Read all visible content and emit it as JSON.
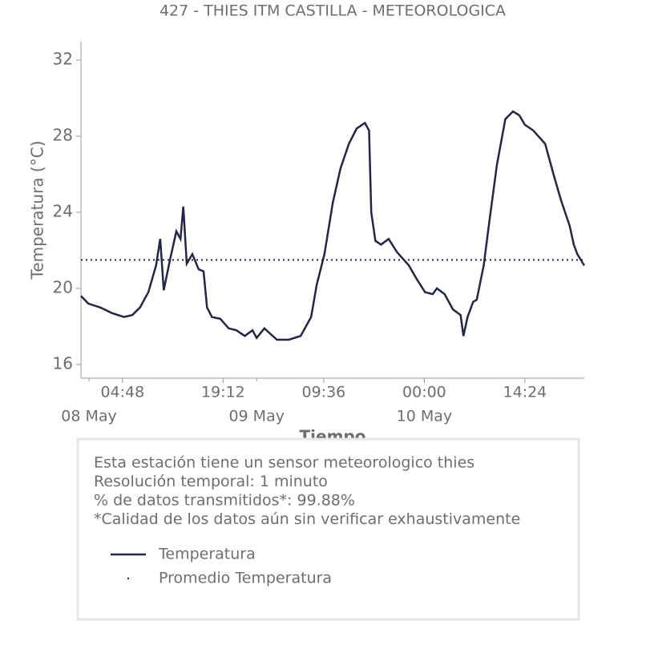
{
  "chart_data": {
    "type": "line",
    "title": "427 - THIES ITM CASTILLA - METEOROLOGICA",
    "xlabel": "Tiempo",
    "ylabel": "Temperatura (°C)",
    "x": [
      -1.15,
      -0.1,
      1.6,
      3.3,
      5.0,
      6.2,
      7.3,
      8.5,
      9.6,
      10.2,
      10.7,
      11.6,
      12.5,
      13.1,
      13.5,
      14.0,
      14.8,
      15.7,
      16.4,
      16.9,
      17.6,
      18.8,
      20.0,
      21.1,
      22.3,
      23.4,
      24.0,
      25.1,
      26.9,
      28.6,
      30.3,
      31.8,
      32.6,
      33.7,
      34.9,
      36.0,
      37.2,
      38.3,
      39.5,
      40.1,
      40.4,
      41.0,
      41.8,
      42.9,
      44.1,
      45.8,
      46.9,
      48.1,
      49.2,
      49.8,
      50.9,
      52.1,
      53.2,
      53.6,
      54.2,
      55.0,
      55.5,
      56.5,
      57.3,
      58.4,
      59.6,
      60.7,
      61.6,
      62.4,
      63.6,
      65.3,
      66.5,
      67.6,
      68.8,
      69.4,
      69.9,
      70.9
    ],
    "series": [
      {
        "name": "Temperatura",
        "color": "#22264b",
        "values": [
          19.6,
          19.2,
          19.0,
          18.7,
          18.5,
          18.6,
          19.0,
          19.8,
          21.2,
          22.6,
          19.9,
          21.5,
          23.0,
          22.6,
          24.3,
          21.3,
          21.8,
          21.0,
          20.9,
          19.0,
          18.5,
          18.4,
          17.9,
          17.8,
          17.5,
          17.8,
          17.4,
          17.9,
          17.3,
          17.3,
          17.5,
          18.5,
          20.2,
          21.8,
          24.5,
          26.3,
          27.6,
          28.4,
          28.7,
          28.3,
          24.0,
          22.5,
          22.3,
          22.6,
          21.9,
          21.2,
          20.5,
          19.8,
          19.7,
          20.0,
          19.7,
          18.9,
          18.6,
          17.5,
          18.5,
          19.3,
          19.4,
          21.2,
          23.5,
          26.5,
          28.9,
          29.3,
          29.1,
          28.6,
          28.3,
          27.6,
          26.0,
          24.6,
          23.3,
          22.3,
          21.8,
          21.2
        ]
      }
    ],
    "reference_lines": [
      {
        "name": "Promedio Temperatura",
        "value": 21.5,
        "color": "#22264b"
      }
    ],
    "xlim": [
      -1.15,
      70.9
    ],
    "ylim": [
      15.28,
      32.97
    ],
    "xticks": [
      {
        "value": 4.8,
        "label": "04:48"
      },
      {
        "value": 19.2,
        "label": "19:12"
      },
      {
        "value": 33.6,
        "label": "09:36"
      },
      {
        "value": 48,
        "label": "00:00"
      },
      {
        "value": 62.4,
        "label": "14:24"
      }
    ],
    "xticks_date": [
      {
        "value": 0,
        "label": "08 May"
      },
      {
        "value": 24,
        "label": "09 May"
      },
      {
        "value": 48,
        "label": "10 May"
      }
    ],
    "yticks": [
      16,
      20,
      24,
      28,
      32
    ],
    "grid": false,
    "notes": [
      "Esta estación tiene un sensor meteorologico thies",
      "Resolución temporal: 1 minuto",
      "% de datos transmitidos*: 99.88%",
      "*Calidad de los datos aún sin verificar exhaustivamente"
    ]
  }
}
